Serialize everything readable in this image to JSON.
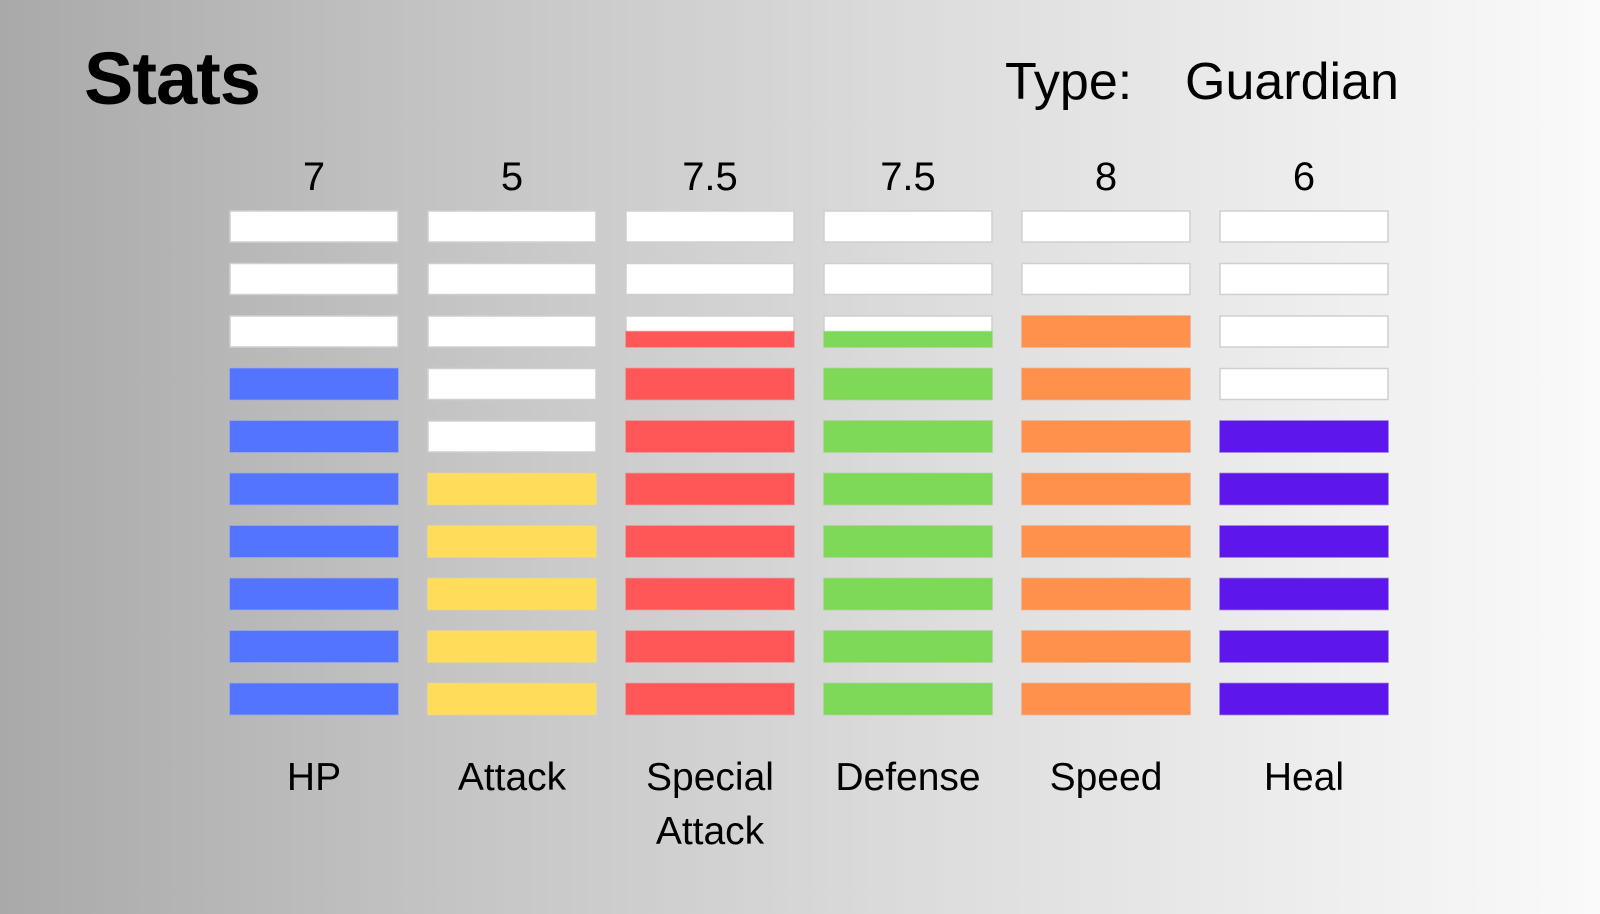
{
  "header": {
    "title": "Stats",
    "type_label": "Type:",
    "type_value": "Guardian"
  },
  "chart_data": {
    "type": "bar",
    "title": "",
    "xlabel": "",
    "ylabel": "",
    "ylim": [
      0,
      10
    ],
    "segments": 10,
    "grid": false,
    "categories": [
      "HP",
      "Attack",
      "Special Attack",
      "Defense",
      "Speed",
      "Heal"
    ],
    "display_labels": [
      [
        "HP"
      ],
      [
        "Attack"
      ],
      [
        "Special",
        "Attack"
      ],
      [
        "Defense"
      ],
      [
        "Speed"
      ],
      [
        "Heal"
      ]
    ],
    "values": [
      7,
      5,
      7.5,
      7.5,
      8,
      6
    ],
    "value_labels": [
      "7",
      "5",
      "7.5",
      "7.5",
      "8",
      "6"
    ],
    "colors": [
      "#5274ff",
      "#ffdd5a",
      "#ff5757",
      "#7ed957",
      "#ff914d",
      "#5e17eb"
    ],
    "empty_color": "#ffffff"
  }
}
